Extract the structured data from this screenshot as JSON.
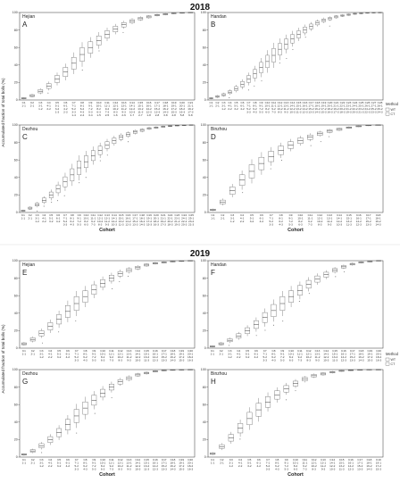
{
  "figure": {
    "years": [
      "2018",
      "2019"
    ],
    "ylabel": "Accumulated fraction of total bolls (%)",
    "xlabel": "Cohort",
    "legend": {
      "title": "Method",
      "entries": [
        "WT",
        "CT"
      ]
    },
    "colors": {
      "box_stroke": "#555555",
      "axis": "#333333",
      "background": "#ffffff"
    }
  },
  "chart_data": [
    {
      "type": "box",
      "year": "2018",
      "site": "Hejian",
      "letter": "A",
      "ylim": [
        0,
        100
      ],
      "yticks": [
        0,
        20,
        40,
        60,
        80,
        100
      ],
      "categories": [
        "C1 1-1",
        "C2 2-1",
        "C3 3-1 1-2",
        "C4 4-1 2-2",
        "C5 5-1 3-2 1-3",
        "C6 6-1 4-2 2-3",
        "C7 7-1 5-2 3-3 1-4",
        "C8 8-1 6-2 4-3 2-4",
        "C9 9-1 7-2 5-3 3-4",
        "C10 10-1 8-2 6-3 1-5",
        "C11 11-1 9-2 7-3 2-5",
        "C12 12-1 10-2 8-3 1-6",
        "C13 13-1 11-2 9-3 2-6",
        "C14 14-1 12-2 10-3 1-7",
        "C15 15-1 13-2 11-3 2-7",
        "C16 16-1 14-2 12-3 1-8",
        "C17 17-1 15-2 13-3 2-8",
        "C18 18-1 16-2 14-3 3-8",
        "C19 19-1 17-2 15-3 4-8",
        "C20 20-1 18-2 16-3 5-8",
        "C21 21-1 19-2 17-3 6-8"
      ],
      "values": [
        2,
        5,
        10,
        16,
        24,
        32,
        42,
        52,
        60,
        68,
        75,
        81,
        86,
        90,
        93,
        95,
        97,
        98,
        99,
        99.5,
        100
      ]
    },
    {
      "type": "box",
      "year": "2018",
      "site": "Handan",
      "letter": "B",
      "ylim": [
        0,
        100
      ],
      "yticks": [
        0,
        20,
        40,
        60,
        80,
        100
      ],
      "categories": [
        "C1 1-1",
        "C2 2-1",
        "C3 3-1 1-2",
        "C4 4-1 2-2",
        "C5 5-1 3-2",
        "C6 6-1 4-2",
        "C7 7-1 5-2 3-3",
        "C8 8-1 6-2 4-3",
        "C9 9-1 7-2 5-3",
        "C10 10-1 8-2 6-3",
        "C11 11-1 9-2 7-3",
        "C12 12-1 10-2 8-3",
        "C13 13-1 11-2 9-3",
        "C14 14-1 12-2 10-3",
        "C15 15-1 13-2 11-3",
        "C16 16-1 14-2 12-3",
        "C17 17-1 15-2 13-3",
        "C18 18-1 16-2 14-3",
        "C19 19-1 17-2 15-3",
        "C20 20-1 18-2 16-3",
        "C21 21-1 19-2 17-3",
        "C22 22-1 20-2 18-3",
        "C23 23-1 21-2 19-3",
        "C24 24-1 22-2 20-3",
        "C25 25-1 23-2 21-3",
        "C26 26-1 24-2 22-3",
        "C27 27-1 25-2 23-3",
        "C28 28-1 26-2 24-3"
      ],
      "values": [
        2,
        4,
        6,
        9,
        13,
        18,
        24,
        30,
        37,
        44,
        51,
        58,
        64,
        70,
        75,
        80,
        84,
        88,
        91,
        93,
        95,
        96.5,
        97.5,
        98.5,
        99,
        99.5,
        99.8,
        100
      ]
    },
    {
      "type": "box",
      "year": "2018",
      "site": "Dezhou",
      "letter": "C",
      "ylim": [
        0,
        100
      ],
      "yticks": [
        0,
        20,
        40,
        60,
        80,
        100
      ],
      "categories": [
        "C1 1-1",
        "C2 2-1",
        "C3 3-1 1-2",
        "C4 4-1 2-2",
        "C5 5-1 3-2",
        "C6 6-1 4-2",
        "C7 7-1 5-2 3-3",
        "C8 8-1 6-2 4-3",
        "C9 9-1 7-2 5-3",
        "C10 10-1 8-2 6-3",
        "C11 11-1 9-2 7-3",
        "C12 12-1 10-2 8-3",
        "C13 13-1 11-2 9-3",
        "C14 14-1 12-2 10-3",
        "C15 15-1 13-2 11-3",
        "C16 16-1 14-2 12-3",
        "C17 17-1 15-2 13-3",
        "C18 18-1 16-2 14-3",
        "C19 19-1 17-2 15-3",
        "C20 20-1 18-2 16-3",
        "C21 21-1 19-2 17-3",
        "C22 22-1 20-2 18-3",
        "C23 23-1 21-2 19-3",
        "C24 24-1 22-2 20-3",
        "C25 25-1 23-2 21-3"
      ],
      "values": [
        2,
        5,
        9,
        14,
        20,
        27,
        35,
        43,
        51,
        58,
        65,
        71,
        77,
        82,
        86,
        89,
        92,
        94,
        96,
        97,
        98,
        98.8,
        99.3,
        99.7,
        100
      ]
    },
    {
      "type": "box",
      "year": "2018",
      "site": "Binzhou",
      "letter": "D",
      "ylim": [
        0,
        100
      ],
      "yticks": [
        0,
        20,
        40,
        60,
        80,
        100
      ],
      "categories": [
        "C1 1-1",
        "C2 2-1",
        "C3 3-1 1-2",
        "C4 4-1 2-2",
        "C5 5-1 3-2",
        "C6 6-1 4-2",
        "C7 7-1 5-2 3-3",
        "C8 8-1 6-2 4-3",
        "C9 9-1 7-2 5-3",
        "C10 10-1 8-2 6-3",
        "C11 11-1 9-2 7-3",
        "C12 12-1 10-2 8-3",
        "C13 13-1 11-2 9-3",
        "C14 14-1 12-2 10-3",
        "C15 15-1 13-2 11-3",
        "C16 16-1 14-2 12-3",
        "C17 17-1 15-2 13-3",
        "C18 18-1 16-2 14-3"
      ],
      "values": [
        3,
        12,
        25,
        37,
        47,
        56,
        64,
        71,
        77,
        82,
        86,
        90,
        93,
        95,
        97,
        98.5,
        99.5,
        100
      ]
    },
    {
      "type": "box",
      "year": "2019",
      "site": "Hejian",
      "letter": "E",
      "ylim": [
        0,
        100
      ],
      "yticks": [
        0,
        20,
        40,
        60,
        80,
        100
      ],
      "categories": [
        "C1 1-1",
        "C2 2-1",
        "C3 3-1 1-2",
        "C4 4-1 2-2",
        "C5 5-1 3-2",
        "C6 6-1 4-2",
        "C7 7-1 5-2 3-3",
        "C8 8-1 6-2 4-3",
        "C9 9-1 7-2 5-3",
        "C10 10-1 8-2 6-3",
        "C11 11-1 9-2 7-3",
        "C12 12-1 10-2 8-3",
        "C13 13-1 11-2 9-3",
        "C14 14-1 12-2 10-3",
        "C15 15-1 13-2 11-3",
        "C16 16-1 14-2 12-3",
        "C17 17-1 15-2 13-3",
        "C18 18-1 16-2 14-3",
        "C19 19-1 17-2 15-3",
        "C20 20-1 18-2 16-3"
      ],
      "values": [
        5,
        10,
        17,
        25,
        33,
        42,
        51,
        59,
        67,
        74,
        80,
        85,
        89,
        92,
        95,
        97,
        98,
        99,
        99.5,
        100
      ]
    },
    {
      "type": "box",
      "year": "2019",
      "site": "Handan",
      "letter": "F",
      "ylim": [
        0,
        100
      ],
      "yticks": [
        0,
        20,
        40,
        60,
        80,
        100
      ],
      "categories": [
        "C1 1-1",
        "C2 2-1",
        "C3 3-1 1-2",
        "C4 4-1 2-2",
        "C5 5-1 3-2",
        "C6 6-1 4-2",
        "C7 7-1 5-2 3-3",
        "C8 8-1 6-2 4-3",
        "C9 9-1 7-2 5-3",
        "C10 10-1 8-2 6-3",
        "C11 11-1 9-2 7-3",
        "C12 12-1 10-2 8-3",
        "C13 13-1 11-2 9-3",
        "C14 14-1 12-2 10-3",
        "C15 15-1 13-2 11-3",
        "C16 16-1 14-2 12-3",
        "C17 17-1 15-2 13-3",
        "C18 18-1 16-2 14-3",
        "C19 19-1 17-2 15-3",
        "C20 20-1 18-2 16-3"
      ],
      "values": [
        2,
        5,
        9,
        14,
        20,
        27,
        35,
        43,
        51,
        59,
        66,
        73,
        79,
        84,
        89,
        93,
        96,
        98,
        99,
        100
      ]
    },
    {
      "type": "box",
      "year": "2019",
      "site": "Dezhou",
      "letter": "G",
      "ylim": [
        0,
        100
      ],
      "yticks": [
        0,
        20,
        40,
        60,
        80,
        100
      ],
      "categories": [
        "C1 1-1",
        "C2 2-1",
        "C3 3-1 1-2",
        "C4 4-1 2-2",
        "C5 5-1 3-2",
        "C6 6-1 4-2",
        "C7 7-1 5-2 3-3",
        "C8 8-1 6-2 4-3",
        "C9 9-1 7-2 5-3",
        "C10 10-1 8-2 6-3",
        "C11 11-1 9-2 7-3",
        "C12 12-1 10-2 8-3",
        "C13 13-1 11-2 9-3",
        "C14 14-1 12-2 10-3",
        "C15 15-1 13-2 11-3",
        "C16 16-1 14-2 12-3",
        "C17 17-1 15-2 13-3",
        "C18 18-1 16-2 14-3",
        "C19 19-1 17-2 15-3",
        "C20 20-1 18-2 16-3"
      ],
      "values": [
        3,
        7,
        13,
        20,
        28,
        37,
        47,
        56,
        65,
        73,
        80,
        86,
        90,
        94,
        96,
        98,
        99,
        99.5,
        99.8,
        100
      ]
    },
    {
      "type": "box",
      "year": "2019",
      "site": "Binzhou",
      "letter": "H",
      "ylim": [
        0,
        100
      ],
      "yticks": [
        0,
        20,
        40,
        60,
        80,
        100
      ],
      "categories": [
        "C1 1-1",
        "C2 2-1",
        "C3 3-1 1-2",
        "C4 4-1 2-2",
        "C5 5-1 3-2",
        "C6 6-1 4-2",
        "C7 7-1 5-2 3-3",
        "C8 8-1 6-2 4-3",
        "C9 9-1 7-2 5-3",
        "C10 10-1 8-2 6-3",
        "C11 11-1 9-2 7-3",
        "C12 12-1 10-2 8-3",
        "C13 13-1 11-2 9-3",
        "C14 14-1 12-2 10-3",
        "C15 15-1 13-2 11-3",
        "C16 16-1 14-2 12-3",
        "C17 17-1 15-2 13-3",
        "C18 18-1 16-2 14-3",
        "C19 19-1 17-2 15-3"
      ],
      "values": [
        4,
        12,
        22,
        33,
        44,
        54,
        63,
        71,
        78,
        84,
        89,
        93,
        95,
        97,
        98.5,
        99.2,
        99.6,
        99.9,
        100
      ]
    }
  ]
}
